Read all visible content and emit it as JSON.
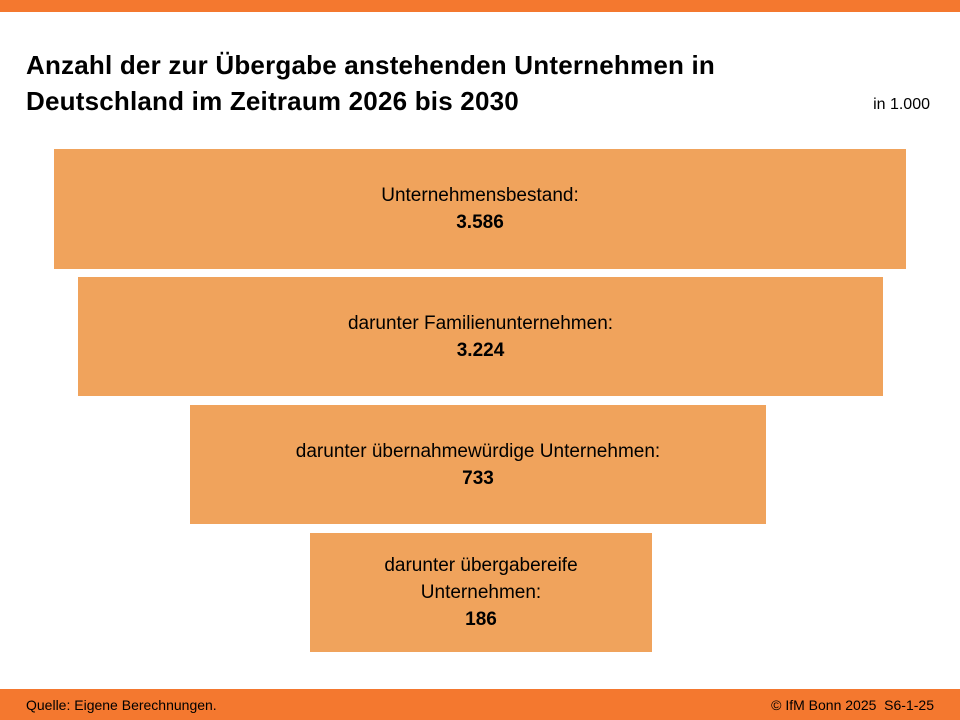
{
  "slide": {
    "title": "Anzahl der zur Übergabe anstehenden Unternehmen in Deutschland im Zeitraum 2026 bis 2030",
    "unit_note": "in 1.000"
  },
  "funnel": {
    "bars": [
      {
        "label": "Unternehmensbestand:",
        "value_label": "3.586"
      },
      {
        "label": "darunter Familienunternehmen:",
        "value_label": "3.224"
      },
      {
        "label": "darunter übernahmewürdige Unternehmen:",
        "value_label": "733"
      },
      {
        "label": "darunter übergabereife\nUnternehmen:",
        "value_label": "186"
      }
    ]
  },
  "footer": {
    "source": "Quelle: Eigene Berechnungen.",
    "copyright": "© IfM Bonn 2025  S6-1-25"
  },
  "colors": {
    "accent_strip": "#F4782F",
    "bar_fill": "#F0A35C",
    "text": "#000000"
  },
  "chart_data": {
    "type": "bar",
    "subtype": "funnel",
    "title": "Anzahl der zur Übergabe anstehenden Unternehmen in Deutschland im Zeitraum 2026 bis 2030",
    "unit": "in 1.000",
    "categories": [
      "Unternehmensbestand",
      "darunter Familienunternehmen",
      "darunter übernahmewürdige Unternehmen",
      "darunter übergabereife Unternehmen"
    ],
    "values": [
      3586,
      3224,
      733,
      186
    ],
    "value_labels": [
      "3.586",
      "3.224",
      "733",
      "186"
    ],
    "orientation": "centered-funnel-top-down",
    "legend": "none",
    "grid": false,
    "source": "Quelle: Eigene Berechnungen.",
    "attribution": "© IfM Bonn 2025 S6-1-25"
  }
}
